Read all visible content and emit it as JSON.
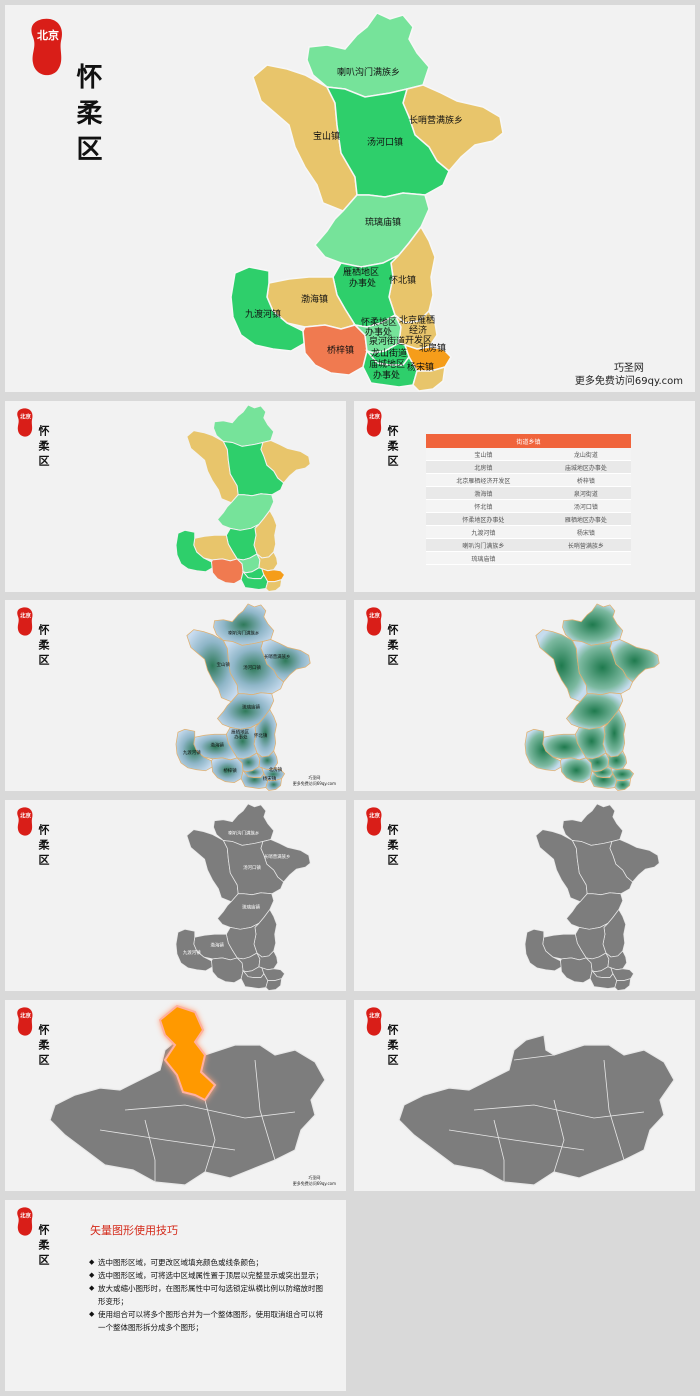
{
  "title": {
    "badge_text": "北京",
    "district": "怀柔区"
  },
  "watermark": {
    "line1": "巧圣网",
    "line2": "更多免费访问69qy.com"
  },
  "colors": {
    "green_light": "#76e39a",
    "green_dark": "#2ecf6b",
    "green_mid": "#44d778",
    "sand": "#e8c56b",
    "orange_red": "#f07a50",
    "orange": "#f59d1a",
    "gray": "#7d7d7d",
    "highlight": "#ff9900",
    "badge_red": "#d91e18"
  },
  "map_labels": {
    "labahe": "喇叭沟门满族乡",
    "changshaoying": "长哨营满族乡",
    "baoshan": "宝山镇",
    "tanghekou": "汤河口镇",
    "liulimiao": "琉璃庙镇",
    "yanqi_line1": "雁栖地区",
    "yanqi_line2": "办事处",
    "huaibei": "怀北镇",
    "bohai": "渤海镇",
    "jiuduhe": "九渡河镇",
    "huairou_line1": "怀柔地区",
    "huairou_line2": "办事处",
    "econ_line1": "北京雁栖",
    "econ_line2": "经济",
    "econ_line3": "开发区",
    "quanhe": "泉河街道",
    "longshan": "龙山街道",
    "qiaozi": "桥梓镇",
    "beifang": "北房镇",
    "miaocheng_line1": "庙城地区",
    "miaocheng_line2": "办事处",
    "yangsong": "杨宋镇"
  },
  "table": {
    "header": "街道乡镇",
    "rows": [
      [
        "宝山镇",
        "龙山街道"
      ],
      [
        "北房镇",
        "庙城地区办事处"
      ],
      [
        "北京雁栖经济开发区",
        "桥梓镇"
      ],
      [
        "渤海镇",
        "泉河街道"
      ],
      [
        "怀北镇",
        "汤河口镇"
      ],
      [
        "怀柔地区办事处",
        "雁栖地区办事处"
      ],
      [
        "九渡河镇",
        "杨宋镇"
      ],
      [
        "喇叭沟门满族乡",
        "长哨营满族乡"
      ],
      [
        "琉璃庙镇",
        ""
      ]
    ]
  },
  "tips": {
    "title": "矢量图形使用技巧",
    "items": [
      "选中图形区域，可更改区域填充颜色或线条颜色；",
      "选中图形区域，可将选中区域属性置于顶层以完整显示或突出显示；",
      "放大或缩小图形时，在图形属性中可勾选锁定纵横比例以防缩放时图形变形；",
      "使用组合可以将多个图形合并为一个整体图形，使用取消组合可以将一个整体图形拆分成多个图形；"
    ]
  }
}
